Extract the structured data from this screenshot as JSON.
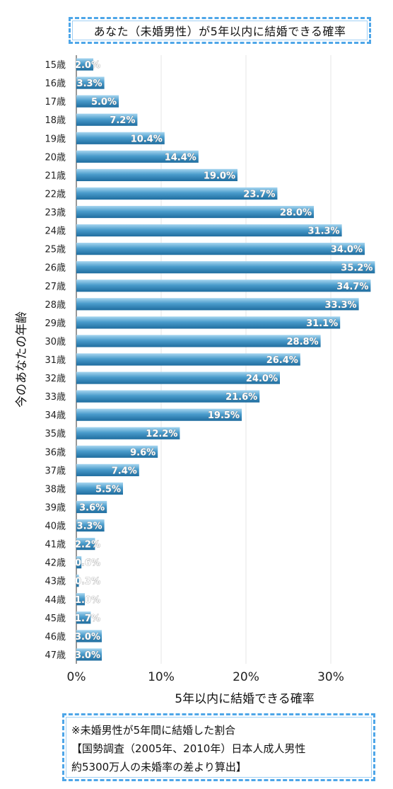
{
  "chart_data": {
    "type": "bar",
    "orientation": "horizontal",
    "title": "あなた（未婚男性）が5年以内に結婚できる確率",
    "ylabel": "今のあなたの年齢",
    "xlabel": "5年以内に結婚できる確率",
    "categories": [
      "15歳",
      "16歳",
      "17歳",
      "18歳",
      "19歳",
      "20歳",
      "21歳",
      "22歳",
      "23歳",
      "24歳",
      "25歳",
      "26歳",
      "27歳",
      "28歳",
      "29歳",
      "30歳",
      "31歳",
      "32歳",
      "33歳",
      "34歳",
      "35歳",
      "36歳",
      "37歳",
      "38歳",
      "39歳",
      "40歳",
      "41歳",
      "42歳",
      "43歳",
      "44歳",
      "45歳",
      "46歳",
      "47歳"
    ],
    "values": [
      2.0,
      3.3,
      5.0,
      7.2,
      10.4,
      14.4,
      19.0,
      23.7,
      28.0,
      31.3,
      34.0,
      35.2,
      34.7,
      33.3,
      31.1,
      28.8,
      26.4,
      24.0,
      21.6,
      19.5,
      12.2,
      9.6,
      7.4,
      5.5,
      3.6,
      3.3,
      2.2,
      0.6,
      0.3,
      1.0,
      1.7,
      3.0,
      3.0
    ],
    "value_labels": [
      "2.0%",
      "3.3%",
      "5.0%",
      "7.2%",
      "10.4%",
      "14.4%",
      "19.0%",
      "23.7%",
      "28.0%",
      "31.3%",
      "34.0%",
      "35.2%",
      "34.7%",
      "33.3%",
      "31.1%",
      "28.8%",
      "26.4%",
      "24.0%",
      "21.6%",
      "19.5%",
      "12.2%",
      "9.6%",
      "7.4%",
      "5.5%",
      "3.6%",
      "3.3%",
      "2.2%",
      "0.6%",
      "0.3%",
      "1.0%",
      "1.7%",
      "3.0%",
      "3.0%"
    ],
    "x_ticks": [
      "0%",
      "10%",
      "20%",
      "30%"
    ],
    "x_tick_values": [
      0,
      10,
      20,
      30
    ],
    "xlim": [
      0,
      35.2
    ],
    "grid": true,
    "bar_color": "#2f86b8",
    "bar_highlight": "#8cc6e6"
  },
  "note": {
    "line1": "※未婚男性が5年間に結婚した割合",
    "line2": "【国勢調査（2005年、2010年）日本人成人男性",
    "line3": "約5300万人の未婚率の差より算出】"
  }
}
